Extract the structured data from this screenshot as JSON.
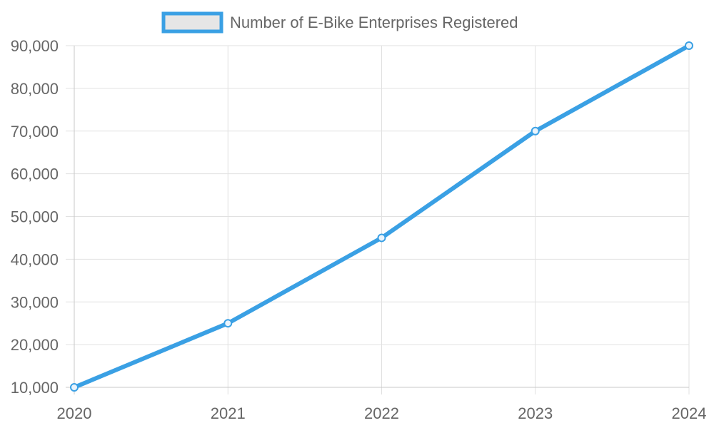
{
  "chart_data": {
    "type": "line",
    "categories": [
      "2020",
      "2021",
      "2022",
      "2023",
      "2024"
    ],
    "series": [
      {
        "name": "Number of E-Bike Enterprises Registered",
        "values": [
          10000,
          25000,
          45000,
          70000,
          90000
        ]
      }
    ],
    "xlabel": "",
    "ylabel": "",
    "ylim": [
      10000,
      90000
    ],
    "yticks": [
      "10,000",
      "20,000",
      "30,000",
      "40,000",
      "50,000",
      "60,000",
      "70,000",
      "80,000",
      "90,000"
    ],
    "grid": true,
    "legend_position": "top-center",
    "colors": {
      "line": "#3aa0e4",
      "legend_fill": "#e6e6e6"
    }
  }
}
